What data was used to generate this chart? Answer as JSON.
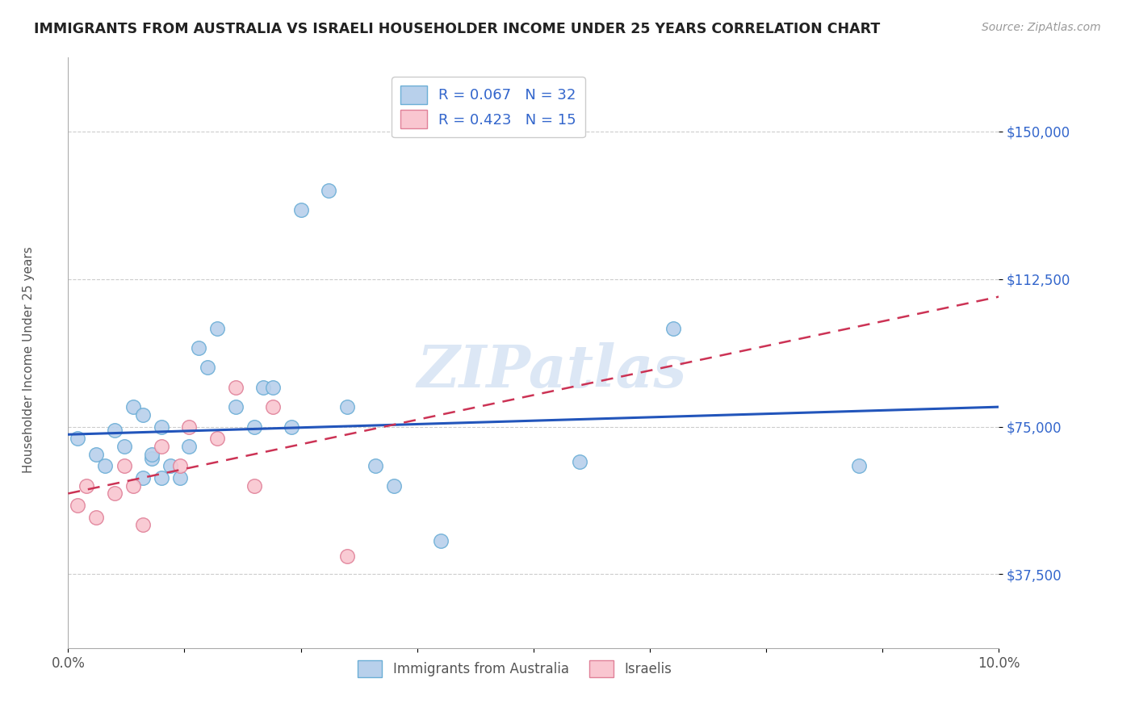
{
  "title": "IMMIGRANTS FROM AUSTRALIA VS ISRAELI HOUSEHOLDER INCOME UNDER 25 YEARS CORRELATION CHART",
  "source": "Source: ZipAtlas.com",
  "ylabel": "Householder Income Under 25 years",
  "xlim": [
    0.0,
    0.1
  ],
  "ylim": [
    18750,
    168750
  ],
  "xticks": [
    0.0,
    0.0125,
    0.025,
    0.0375,
    0.05,
    0.0625,
    0.075,
    0.0875,
    0.1
  ],
  "xticklabels": [
    "0.0%",
    "",
    "",
    "",
    "",
    "",
    "",
    "",
    "10.0%"
  ],
  "ytick_positions": [
    37500,
    75000,
    112500,
    150000
  ],
  "ytick_labels": [
    "$37,500",
    "$75,000",
    "$112,500",
    "$150,000"
  ],
  "legend_R1": "R = 0.067",
  "legend_N1": "N = 32",
  "legend_R2": "R = 0.423",
  "legend_N2": "N = 15",
  "legend_label1": "Immigrants from Australia",
  "legend_label2": "Israelis",
  "blue_color": "#b8d0eb",
  "blue_edge": "#6baed6",
  "pink_color": "#f9c6d0",
  "pink_edge": "#e08098",
  "line_blue": "#2255bb",
  "line_pink": "#cc3355",
  "text_blue": "#3366cc",
  "watermark_color": "#c5d8ef",
  "blue_scatter_x": [
    0.001,
    0.003,
    0.004,
    0.005,
    0.006,
    0.007,
    0.008,
    0.009,
    0.01,
    0.011,
    0.012,
    0.013,
    0.014,
    0.015,
    0.016,
    0.018,
    0.02,
    0.021,
    0.022,
    0.024,
    0.025,
    0.028,
    0.03,
    0.033,
    0.035,
    0.04,
    0.055,
    0.065,
    0.085,
    0.008,
    0.009,
    0.01
  ],
  "blue_scatter_y": [
    72000,
    68000,
    65000,
    74000,
    70000,
    80000,
    78000,
    67000,
    75000,
    65000,
    62000,
    70000,
    95000,
    90000,
    100000,
    80000,
    75000,
    85000,
    85000,
    75000,
    130000,
    135000,
    80000,
    65000,
    60000,
    46000,
    66000,
    100000,
    65000,
    62000,
    68000,
    62000
  ],
  "pink_scatter_x": [
    0.001,
    0.002,
    0.003,
    0.005,
    0.006,
    0.007,
    0.008,
    0.01,
    0.012,
    0.013,
    0.016,
    0.018,
    0.02,
    0.022,
    0.03
  ],
  "pink_scatter_y": [
    55000,
    60000,
    52000,
    58000,
    65000,
    60000,
    50000,
    70000,
    65000,
    75000,
    72000,
    85000,
    60000,
    80000,
    42000
  ],
  "blue_line_x": [
    0.0,
    0.1
  ],
  "blue_line_y": [
    73000,
    80000
  ],
  "pink_line_x": [
    0.0,
    0.1
  ],
  "pink_line_y": [
    58000,
    108000
  ]
}
